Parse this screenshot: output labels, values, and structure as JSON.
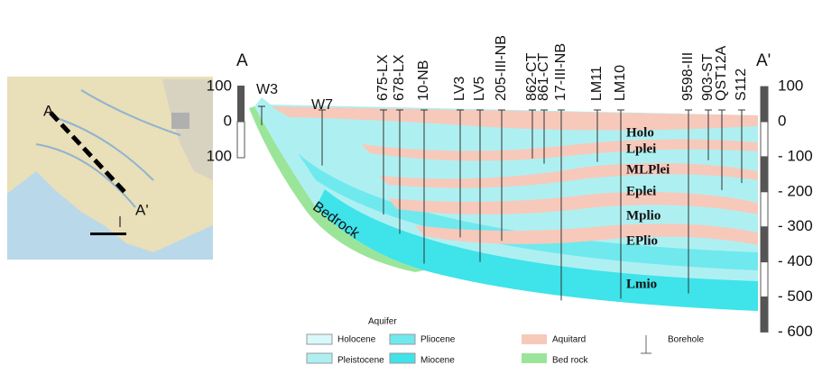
{
  "title_left": "A",
  "title_right": "A'",
  "map": {
    "label_start": "A",
    "label_end": "A'"
  },
  "left_scale": {
    "ticks": [
      100,
      0,
      {
        "value": -100,
        "label": "100"
      }
    ]
  },
  "right_scale": {
    "ticks": [
      100,
      0,
      {
        "value": -100,
        "label": "- 100"
      },
      {
        "value": -200,
        "label": "- 200"
      },
      {
        "value": -300,
        "label": "- 300"
      },
      {
        "value": -400,
        "label": "- 400"
      },
      {
        "value": -500,
        "label": "- 500"
      },
      {
        "value": -600,
        "label": "- 600"
      }
    ]
  },
  "boreholes": [
    {
      "name": "W3",
      "depth": -10
    },
    {
      "name": "W7",
      "depth": -125
    },
    {
      "name": "675-LX",
      "depth": -265
    },
    {
      "name": "678-LX",
      "depth": -320
    },
    {
      "name": "10-NB",
      "depth": -405
    },
    {
      "name": "LV3",
      "depth": -330
    },
    {
      "name": "LV5",
      "depth": -400
    },
    {
      "name": "205-III-NB",
      "depth": -340
    },
    {
      "name": "862-CT",
      "depth": -105
    },
    {
      "name": "861-CT",
      "depth": -120
    },
    {
      "name": "17-III-NB",
      "depth": -510
    },
    {
      "name": "LM11",
      "depth": -115
    },
    {
      "name": "LM10",
      "depth": -505
    },
    {
      "name": "9598-III",
      "depth": -490
    },
    {
      "name": "903-ST",
      "depth": -110
    },
    {
      "name": "QST12A",
      "depth": -195
    },
    {
      "name": "S112",
      "depth": -175
    }
  ],
  "layers": [
    "Holo",
    "Lplei",
    "MLPlei",
    "Eplei",
    "Mplio",
    "EPlio",
    "Lmio"
  ],
  "bedrock_label": "Bedrock",
  "legend": {
    "title": "Aquifer",
    "items": [
      "Holocene",
      "Pleistocene",
      "Pliocene",
      "Miocene",
      "Aquitard",
      "Bed rock",
      "Borehole"
    ]
  }
}
